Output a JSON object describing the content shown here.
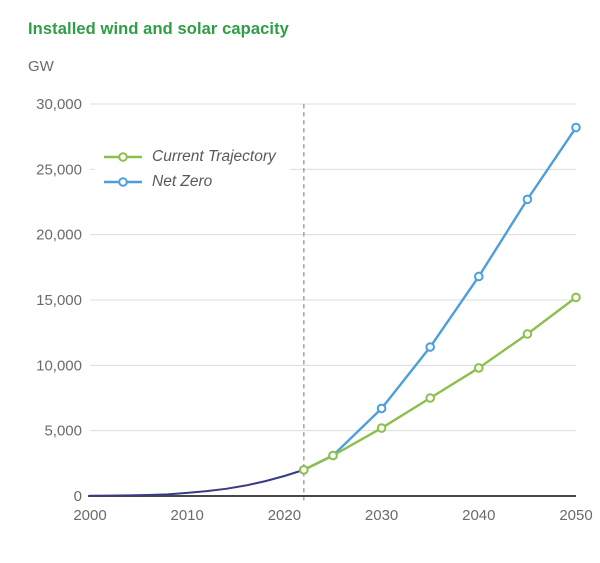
{
  "chart_data": {
    "type": "line",
    "title": "Installed wind and solar capacity",
    "title_color": "#2E9E44",
    "ylabel_unit": "GW",
    "xlim": [
      2000,
      2050
    ],
    "ylim": [
      0,
      30000
    ],
    "xticks": [
      2000,
      2010,
      2020,
      2030,
      2040,
      2050
    ],
    "yticks": [
      0,
      5000,
      10000,
      15000,
      20000,
      25000,
      30000
    ],
    "grid": "horizontal",
    "legend_position": "top-left-inside",
    "forecast_divider_year": 2022,
    "series": [
      {
        "name": "Historical",
        "color": "#3A3A87",
        "markers": false,
        "in_legend": false,
        "points": [
          [
            2000,
            17
          ],
          [
            2002,
            28
          ],
          [
            2004,
            45
          ],
          [
            2006,
            75
          ],
          [
            2008,
            125
          ],
          [
            2010,
            235
          ],
          [
            2012,
            370
          ],
          [
            2014,
            550
          ],
          [
            2016,
            800
          ],
          [
            2018,
            1130
          ],
          [
            2020,
            1530
          ],
          [
            2022,
            2000
          ]
        ]
      },
      {
        "name": "Net Zero",
        "color": "#4C9FDC",
        "markers": true,
        "in_legend": true,
        "points": [
          [
            2022,
            2000
          ],
          [
            2025,
            3100
          ],
          [
            2030,
            6700
          ],
          [
            2035,
            11400
          ],
          [
            2040,
            16800
          ],
          [
            2045,
            22700
          ],
          [
            2050,
            28200
          ]
        ]
      },
      {
        "name": "Current Trajectory",
        "color": "#8CBF4B",
        "markers": true,
        "in_legend": true,
        "points": [
          [
            2022,
            2000
          ],
          [
            2025,
            3100
          ],
          [
            2030,
            5200
          ],
          [
            2035,
            7500
          ],
          [
            2040,
            9800
          ],
          [
            2045,
            12400
          ],
          [
            2050,
            15200
          ]
        ]
      }
    ],
    "colors": {
      "grid": "#DCDCDC",
      "axis": "#474747",
      "tick_label": "#6B6B6B",
      "legend_text": "#595959",
      "divider": "#999999",
      "marker_fill": "#FFFFFF"
    }
  }
}
